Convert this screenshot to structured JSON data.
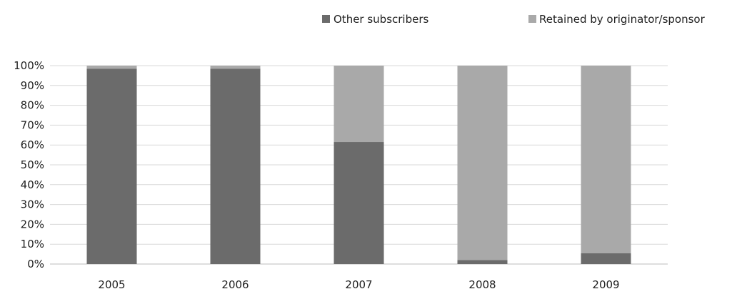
{
  "chart_data": {
    "type": "bar",
    "stacked": true,
    "categories": [
      "2005",
      "2006",
      "2007",
      "2008",
      "2009"
    ],
    "series": [
      {
        "name": "Other subscribers",
        "color": "#6b6b6b",
        "values": [
          98.5,
          98.5,
          61.5,
          2.0,
          5.5
        ]
      },
      {
        "name": "Retained by originator/sponsor",
        "color": "#a9a9a9",
        "values": [
          1.5,
          1.5,
          38.5,
          98.0,
          94.5
        ]
      }
    ],
    "ylim": [
      0,
      100
    ],
    "yticks": [
      "0%",
      "10%",
      "20%",
      "30%",
      "40%",
      "50%",
      "60%",
      "70%",
      "80%",
      "90%",
      "100%"
    ],
    "grid": true,
    "legend_position": "top-right",
    "title": "",
    "xlabel": "",
    "ylabel": ""
  }
}
